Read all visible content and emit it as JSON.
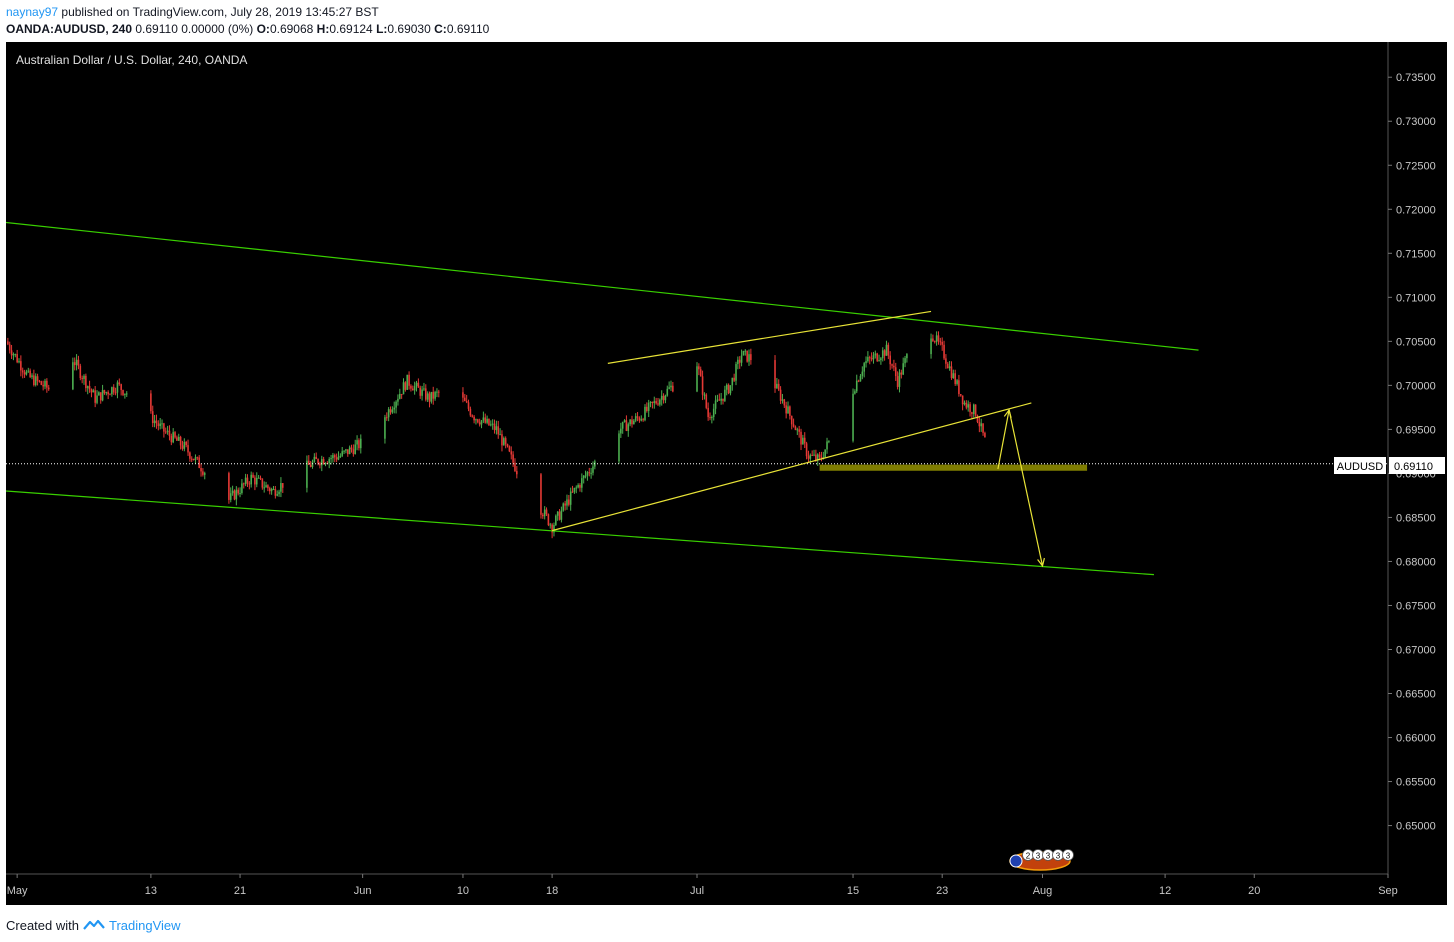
{
  "header": {
    "author": "naynay97",
    "published_text": "published on TradingView.com, July 28, 2019 13:45:27 BST",
    "symbol": "OANDA:AUDUSD, 240",
    "change": "0.69110 0.00000 (0%)",
    "o_label": "O:",
    "o_value": "0.69068",
    "h_label": "H:",
    "h_value": "0.69124",
    "l_label": "L:",
    "l_value": "0.69030",
    "c_label": "C:",
    "c_value": "0.69110"
  },
  "chart_title": "Australian Dollar / U.S. Dollar, 240, OANDA",
  "price_badge": {
    "symbol": "AUDUSD",
    "value": "0.69110"
  },
  "events_badge": {
    "labels": [
      "2",
      "3",
      "3",
      "3",
      "3"
    ]
  },
  "footer": {
    "created_with": "Created with",
    "brand": "TradingView"
  },
  "colors": {
    "background": "#000000",
    "up_candle": "#4caf50",
    "down_candle": "#e53935",
    "channel_line": "#39d000",
    "wedge_line": "#e8e337",
    "support_zone": "#8c8a00",
    "axis_text": "#c8c8c8",
    "price_line": "#ffffff"
  },
  "chart_data": {
    "type": "candlestick",
    "symbol": "AUDUSD",
    "timeframe": "240",
    "x_range": [
      "2019-04-30",
      "2019-09-01"
    ],
    "y_range": [
      0.6445,
      0.739
    ],
    "y_ticks": [
      "0.73500",
      "0.73000",
      "0.72500",
      "0.72000",
      "0.71500",
      "0.71000",
      "0.70500",
      "0.70000",
      "0.69500",
      "0.69000",
      "0.68500",
      "0.68000",
      "0.67500",
      "0.67000",
      "0.66500",
      "0.66000",
      "0.65500",
      "0.65000"
    ],
    "x_ticks": [
      {
        "date": "2019-05-01",
        "label": "May"
      },
      {
        "date": "2019-05-13",
        "label": "13"
      },
      {
        "date": "2019-05-21",
        "label": "21"
      },
      {
        "date": "2019-06-01",
        "label": "Jun"
      },
      {
        "date": "2019-06-10",
        "label": "10"
      },
      {
        "date": "2019-06-18",
        "label": "18"
      },
      {
        "date": "2019-07-01",
        "label": "Jul"
      },
      {
        "date": "2019-07-15",
        "label": "15"
      },
      {
        "date": "2019-07-23",
        "label": "23"
      },
      {
        "date": "2019-08-01",
        "label": "Aug"
      },
      {
        "date": "2019-08-12",
        "label": "12"
      },
      {
        "date": "2019-08-20",
        "label": "20"
      },
      {
        "date": "2019-09-01",
        "label": "Sep"
      }
    ],
    "last_price": 0.6911,
    "close_path": [
      [
        "2019-04-30",
        0.705
      ],
      [
        "2019-05-02",
        0.701
      ],
      [
        "2019-05-04",
        0.6995
      ],
      [
        "2019-05-06",
        0.703
      ],
      [
        "2019-05-08",
        0.6985
      ],
      [
        "2019-05-10",
        0.7
      ],
      [
        "2019-05-12",
        0.698
      ],
      [
        "2019-05-14",
        0.695
      ],
      [
        "2019-05-16",
        0.693
      ],
      [
        "2019-05-18",
        0.69
      ],
      [
        "2019-05-20",
        0.687
      ],
      [
        "2019-05-22",
        0.6895
      ],
      [
        "2019-05-24",
        0.688
      ],
      [
        "2019-05-26",
        0.69
      ],
      [
        "2019-05-28",
        0.6915
      ],
      [
        "2019-05-30",
        0.692
      ],
      [
        "2019-06-01",
        0.6935
      ],
      [
        "2019-06-03",
        0.6965
      ],
      [
        "2019-06-05",
        0.7005
      ],
      [
        "2019-06-07",
        0.6985
      ],
      [
        "2019-06-09",
        0.7
      ],
      [
        "2019-06-11",
        0.6965
      ],
      [
        "2019-06-13",
        0.695
      ],
      [
        "2019-06-15",
        0.69
      ],
      [
        "2019-06-17",
        0.686
      ],
      [
        "2019-06-18",
        0.684
      ],
      [
        "2019-06-20",
        0.688
      ],
      [
        "2019-06-22",
        0.6915
      ],
      [
        "2019-06-24",
        0.695
      ],
      [
        "2019-06-26",
        0.6965
      ],
      [
        "2019-06-28",
        0.699
      ],
      [
        "2019-07-01",
        0.7025
      ],
      [
        "2019-07-02",
        0.6965
      ],
      [
        "2019-07-04",
        0.7
      ],
      [
        "2019-07-05",
        0.7035
      ],
      [
        "2019-07-07",
        0.7025
      ],
      [
        "2019-07-09",
        0.6975
      ],
      [
        "2019-07-11",
        0.692
      ],
      [
        "2019-07-12",
        0.6915
      ],
      [
        "2019-07-14",
        0.6965
      ],
      [
        "2019-07-16",
        0.7025
      ],
      [
        "2019-07-18",
        0.704
      ],
      [
        "2019-07-19",
        0.7005
      ],
      [
        "2019-07-21",
        0.707
      ],
      [
        "2019-07-22",
        0.706
      ],
      [
        "2019-07-23",
        0.704
      ],
      [
        "2019-07-25",
        0.698
      ],
      [
        "2019-07-26",
        0.697
      ],
      [
        "2019-07-27",
        0.693
      ],
      [
        "2019-07-28",
        0.6911
      ]
    ],
    "drawings": {
      "channel_upper": [
        [
          "2019-04-30",
          0.7185
        ],
        [
          "2019-08-15",
          0.704
        ]
      ],
      "channel_lower": [
        [
          "2019-04-30",
          0.688
        ],
        [
          "2019-08-11",
          0.6785
        ]
      ],
      "wedge_upper": [
        [
          "2019-06-23",
          0.7025
        ],
        [
          "2019-07-22",
          0.7084
        ]
      ],
      "wedge_lower": [
        [
          "2019-06-18",
          0.6835
        ],
        [
          "2019-07-31",
          0.698
        ]
      ],
      "support_zone": [
        [
          "2019-07-12",
          "2019-08-05"
        ],
        [
          0.6903,
          0.691
        ]
      ],
      "projection": [
        [
          "2019-07-28",
          0.6905
        ],
        [
          "2019-07-29",
          0.6972
        ],
        [
          "2019-08-01",
          0.6795
        ]
      ]
    }
  }
}
